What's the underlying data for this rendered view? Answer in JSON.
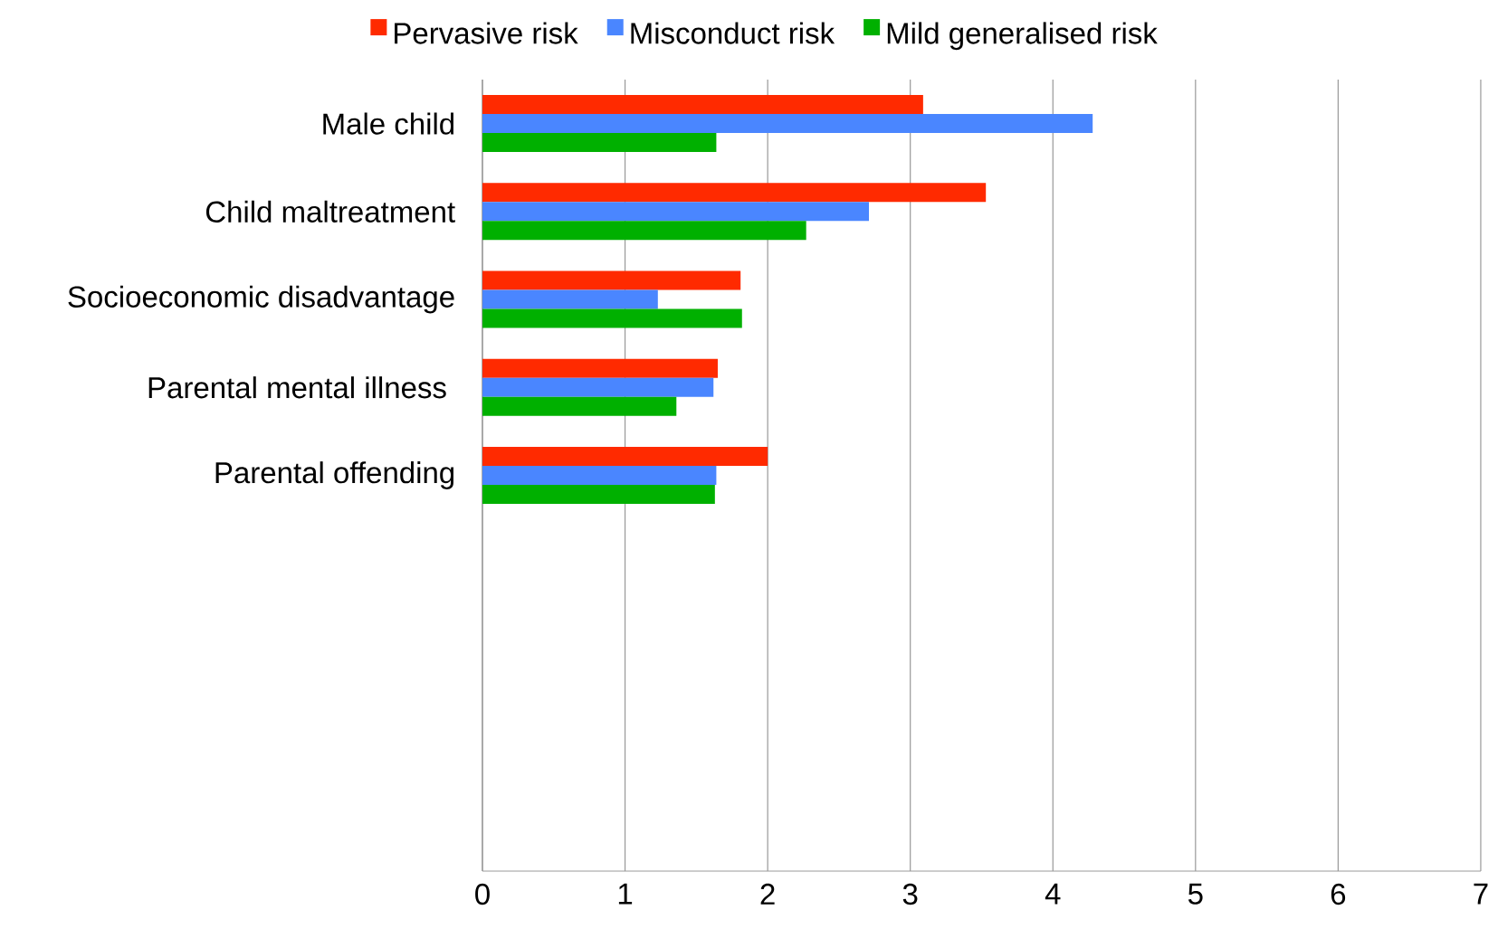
{
  "chart_data": {
    "type": "bar",
    "orientation": "horizontal",
    "categories": [
      "Male child",
      "Child maltreatment",
      "Socioeconomic disadvantage",
      "Parental mental illness ",
      "Parental offending",
      null,
      null,
      null,
      null
    ],
    "series": [
      {
        "name": "Pervasive risk",
        "color": "#ff2a00",
        "values": [
          3.09,
          3.53,
          1.81,
          1.65,
          2.0,
          null,
          null,
          null,
          null
        ]
      },
      {
        "name": "Misconduct risk",
        "color": "#4a86ff",
        "values": [
          4.28,
          2.71,
          1.23,
          1.62,
          1.64,
          null,
          null,
          null,
          null
        ]
      },
      {
        "name": "Mild generalised risk",
        "color": "#00b000",
        "values": [
          1.64,
          2.27,
          1.82,
          1.36,
          1.63,
          null,
          null,
          null,
          null
        ]
      }
    ],
    "xlim": [
      0,
      7
    ],
    "xticks": [
      0,
      1,
      2,
      3,
      4,
      5,
      6,
      7
    ],
    "grid": "x",
    "legend": "top"
  }
}
